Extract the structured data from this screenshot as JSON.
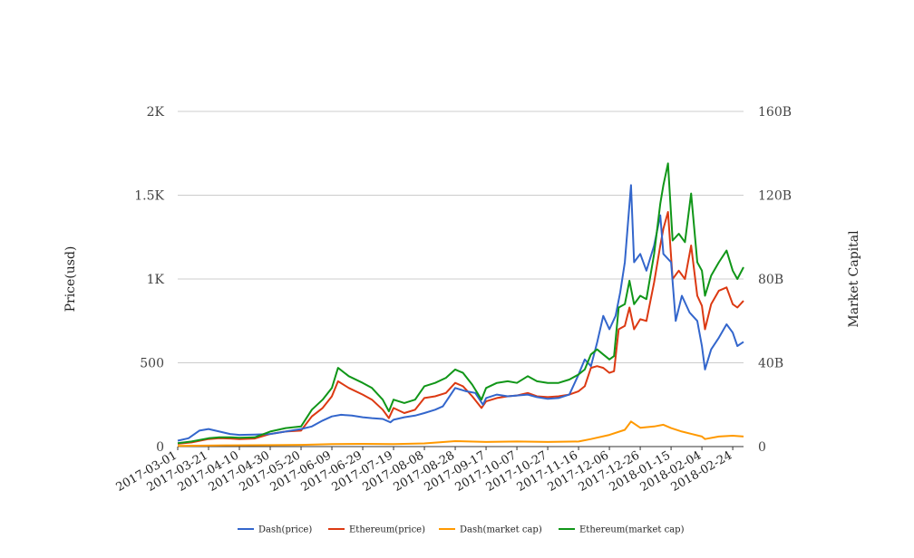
{
  "chart_data": {
    "type": "line",
    "title": "",
    "y_left_label": "Price(usd)",
    "y_right_label": "Market Capital",
    "y_left_ticks": [
      "0",
      "500",
      "1K",
      "1.5K",
      "2K"
    ],
    "y_right_ticks": [
      "0",
      "40B",
      "80B",
      "120B",
      "160B"
    ],
    "ylim_left": [
      0,
      2000
    ],
    "ylim_right": [
      0,
      160000000000
    ],
    "x_ticks": [
      "2017-03-01",
      "2017-03-21",
      "2017-04-10",
      "2017-04-30",
      "2017-05-20",
      "2017-06-09",
      "2017-06-29",
      "2017-07-19",
      "2017-08-08",
      "2017-08-28",
      "2017-09-17",
      "2017-10-07",
      "2017-10-27",
      "2017-11-16",
      "2017-12-06",
      "2017-12-26",
      "2018-01-15",
      "2018-02-04",
      "2018-02-24"
    ],
    "xlim": [
      "2017-03-01",
      "2018-03-03"
    ],
    "grid": true,
    "legend_position": "bottom",
    "series": [
      {
        "name": "Dash(price)",
        "color": "#3366cc",
        "axis": "left",
        "points": [
          [
            "2017-03-01",
            35
          ],
          [
            "2017-03-08",
            50
          ],
          [
            "2017-03-15",
            95
          ],
          [
            "2017-03-21",
            105
          ],
          [
            "2017-03-28",
            90
          ],
          [
            "2017-04-04",
            75
          ],
          [
            "2017-04-10",
            70
          ],
          [
            "2017-04-20",
            72
          ],
          [
            "2017-04-30",
            75
          ],
          [
            "2017-05-10",
            90
          ],
          [
            "2017-05-20",
            105
          ],
          [
            "2017-05-27",
            120
          ],
          [
            "2017-06-03",
            155
          ],
          [
            "2017-06-09",
            180
          ],
          [
            "2017-06-15",
            190
          ],
          [
            "2017-06-22",
            185
          ],
          [
            "2017-06-29",
            175
          ],
          [
            "2017-07-05",
            170
          ],
          [
            "2017-07-12",
            165
          ],
          [
            "2017-07-17",
            145
          ],
          [
            "2017-07-19",
            160
          ],
          [
            "2017-07-26",
            175
          ],
          [
            "2017-08-02",
            185
          ],
          [
            "2017-08-08",
            200
          ],
          [
            "2017-08-15",
            220
          ],
          [
            "2017-08-20",
            240
          ],
          [
            "2017-08-28",
            350
          ],
          [
            "2017-09-04",
            330
          ],
          [
            "2017-09-10",
            320
          ],
          [
            "2017-09-15",
            250
          ],
          [
            "2017-09-17",
            290
          ],
          [
            "2017-09-24",
            310
          ],
          [
            "2017-10-01",
            300
          ],
          [
            "2017-10-07",
            305
          ],
          [
            "2017-10-14",
            310
          ],
          [
            "2017-10-20",
            295
          ],
          [
            "2017-10-27",
            285
          ],
          [
            "2017-11-03",
            290
          ],
          [
            "2017-11-10",
            310
          ],
          [
            "2017-11-16",
            430
          ],
          [
            "2017-11-20",
            520
          ],
          [
            "2017-11-24",
            480
          ],
          [
            "2017-11-28",
            620
          ],
          [
            "2017-12-02",
            780
          ],
          [
            "2017-12-06",
            700
          ],
          [
            "2017-12-10",
            780
          ],
          [
            "2017-12-13",
            920
          ],
          [
            "2017-12-16",
            1100
          ],
          [
            "2017-12-20",
            1560
          ],
          [
            "2017-12-22",
            1100
          ],
          [
            "2017-12-26",
            1150
          ],
          [
            "2017-12-30",
            1050
          ],
          [
            "2018-01-04",
            1200
          ],
          [
            "2018-01-08",
            1380
          ],
          [
            "2018-01-10",
            1150
          ],
          [
            "2018-01-15",
            1100
          ],
          [
            "2018-01-18",
            750
          ],
          [
            "2018-01-22",
            900
          ],
          [
            "2018-01-27",
            800
          ],
          [
            "2018-02-01",
            750
          ],
          [
            "2018-02-04",
            600
          ],
          [
            "2018-02-06",
            460
          ],
          [
            "2018-02-10",
            580
          ],
          [
            "2018-02-15",
            650
          ],
          [
            "2018-02-20",
            730
          ],
          [
            "2018-02-24",
            680
          ],
          [
            "2018-02-27",
            600
          ],
          [
            "2018-03-03",
            625
          ]
        ]
      },
      {
        "name": "Ethereum(price)",
        "color": "#dc3912",
        "axis": "left",
        "points": [
          [
            "2017-03-01",
            17
          ],
          [
            "2017-03-10",
            25
          ],
          [
            "2017-03-21",
            45
          ],
          [
            "2017-03-28",
            50
          ],
          [
            "2017-04-04",
            48
          ],
          [
            "2017-04-10",
            45
          ],
          [
            "2017-04-20",
            48
          ],
          [
            "2017-04-30",
            75
          ],
          [
            "2017-05-10",
            90
          ],
          [
            "2017-05-20",
            95
          ],
          [
            "2017-05-27",
            180
          ],
          [
            "2017-06-03",
            230
          ],
          [
            "2017-06-09",
            300
          ],
          [
            "2017-06-13",
            390
          ],
          [
            "2017-06-20",
            350
          ],
          [
            "2017-06-29",
            310
          ],
          [
            "2017-07-05",
            280
          ],
          [
            "2017-07-12",
            220
          ],
          [
            "2017-07-16",
            170
          ],
          [
            "2017-07-19",
            230
          ],
          [
            "2017-07-26",
            200
          ],
          [
            "2017-08-02",
            220
          ],
          [
            "2017-08-08",
            290
          ],
          [
            "2017-08-15",
            300
          ],
          [
            "2017-08-22",
            320
          ],
          [
            "2017-08-28",
            380
          ],
          [
            "2017-09-02",
            360
          ],
          [
            "2017-09-08",
            300
          ],
          [
            "2017-09-14",
            230
          ],
          [
            "2017-09-17",
            270
          ],
          [
            "2017-09-24",
            290
          ],
          [
            "2017-10-01",
            300
          ],
          [
            "2017-10-07",
            305
          ],
          [
            "2017-10-14",
            320
          ],
          [
            "2017-10-20",
            300
          ],
          [
            "2017-10-27",
            295
          ],
          [
            "2017-11-03",
            300
          ],
          [
            "2017-11-10",
            310
          ],
          [
            "2017-11-16",
            330
          ],
          [
            "2017-11-20",
            360
          ],
          [
            "2017-11-24",
            470
          ],
          [
            "2017-11-28",
            480
          ],
          [
            "2017-12-02",
            470
          ],
          [
            "2017-12-06",
            440
          ],
          [
            "2017-12-09",
            450
          ],
          [
            "2017-12-12",
            700
          ],
          [
            "2017-12-16",
            720
          ],
          [
            "2017-12-19",
            830
          ],
          [
            "2017-12-22",
            700
          ],
          [
            "2017-12-26",
            760
          ],
          [
            "2017-12-30",
            750
          ],
          [
            "2018-01-04",
            980
          ],
          [
            "2018-01-08",
            1200
          ],
          [
            "2018-01-10",
            1300
          ],
          [
            "2018-01-13",
            1400
          ],
          [
            "2018-01-16",
            1000
          ],
          [
            "2018-01-20",
            1050
          ],
          [
            "2018-01-24",
            1000
          ],
          [
            "2018-01-28",
            1200
          ],
          [
            "2018-02-01",
            900
          ],
          [
            "2018-02-04",
            840
          ],
          [
            "2018-02-06",
            700
          ],
          [
            "2018-02-10",
            850
          ],
          [
            "2018-02-15",
            930
          ],
          [
            "2018-02-20",
            950
          ],
          [
            "2018-02-24",
            850
          ],
          [
            "2018-02-27",
            830
          ],
          [
            "2018-03-03",
            870
          ]
        ]
      },
      {
        "name": "Dash(market cap)",
        "color": "#ff9900",
        "axis": "right",
        "points": [
          [
            "2017-03-01",
            300000000
          ],
          [
            "2017-04-01",
            600000000
          ],
          [
            "2017-05-01",
            700000000
          ],
          [
            "2017-05-20",
            800000000
          ],
          [
            "2017-06-09",
            1200000000
          ],
          [
            "2017-06-29",
            1300000000
          ],
          [
            "2017-07-19",
            1200000000
          ],
          [
            "2017-08-08",
            1500000000
          ],
          [
            "2017-08-28",
            2600000000
          ],
          [
            "2017-09-17",
            2200000000
          ],
          [
            "2017-10-07",
            2400000000
          ],
          [
            "2017-10-27",
            2200000000
          ],
          [
            "2017-11-16",
            2400000000
          ],
          [
            "2017-11-24",
            3600000000
          ],
          [
            "2017-12-06",
            5600000000
          ],
          [
            "2017-12-16",
            8000000000
          ],
          [
            "2017-12-20",
            12000000000
          ],
          [
            "2017-12-26",
            9000000000
          ],
          [
            "2018-01-04",
            9600000000
          ],
          [
            "2018-01-10",
            10400000000
          ],
          [
            "2018-01-15",
            8800000000
          ],
          [
            "2018-01-22",
            7200000000
          ],
          [
            "2018-02-04",
            4800000000
          ],
          [
            "2018-02-06",
            3600000000
          ],
          [
            "2018-02-15",
            4800000000
          ],
          [
            "2018-02-24",
            5200000000
          ],
          [
            "2018-03-03",
            4800000000
          ]
        ]
      },
      {
        "name": "Ethereum(market cap)",
        "color": "#109618",
        "axis": "right",
        "points": [
          [
            "2017-03-01",
            1600000000
          ],
          [
            "2017-03-10",
            2400000000
          ],
          [
            "2017-03-21",
            4000000000
          ],
          [
            "2017-03-28",
            4400000000
          ],
          [
            "2017-04-04",
            4400000000
          ],
          [
            "2017-04-10",
            4200000000
          ],
          [
            "2017-04-20",
            4400000000
          ],
          [
            "2017-04-30",
            7200000000
          ],
          [
            "2017-05-10",
            8800000000
          ],
          [
            "2017-05-20",
            9600000000
          ],
          [
            "2017-05-27",
            17600000000
          ],
          [
            "2017-06-03",
            22400000000
          ],
          [
            "2017-06-09",
            28000000000
          ],
          [
            "2017-06-13",
            37600000000
          ],
          [
            "2017-06-20",
            33600000000
          ],
          [
            "2017-06-29",
            30400000000
          ],
          [
            "2017-07-05",
            28000000000
          ],
          [
            "2017-07-12",
            22400000000
          ],
          [
            "2017-07-16",
            16800000000
          ],
          [
            "2017-07-19",
            22400000000
          ],
          [
            "2017-07-26",
            20800000000
          ],
          [
            "2017-08-02",
            22400000000
          ],
          [
            "2017-08-08",
            28800000000
          ],
          [
            "2017-08-15",
            30400000000
          ],
          [
            "2017-08-22",
            32800000000
          ],
          [
            "2017-08-28",
            36800000000
          ],
          [
            "2017-09-02",
            35200000000
          ],
          [
            "2017-09-08",
            29600000000
          ],
          [
            "2017-09-14",
            22400000000
          ],
          [
            "2017-09-17",
            28000000000
          ],
          [
            "2017-09-24",
            30400000000
          ],
          [
            "2017-10-01",
            31200000000
          ],
          [
            "2017-10-07",
            30400000000
          ],
          [
            "2017-10-14",
            33600000000
          ],
          [
            "2017-10-20",
            31200000000
          ],
          [
            "2017-10-27",
            30400000000
          ],
          [
            "2017-11-03",
            30400000000
          ],
          [
            "2017-11-10",
            32000000000
          ],
          [
            "2017-11-16",
            34400000000
          ],
          [
            "2017-11-20",
            36800000000
          ],
          [
            "2017-11-24",
            44000000000
          ],
          [
            "2017-11-28",
            46400000000
          ],
          [
            "2017-12-02",
            44000000000
          ],
          [
            "2017-12-06",
            41600000000
          ],
          [
            "2017-12-09",
            43200000000
          ],
          [
            "2017-12-12",
            66400000000
          ],
          [
            "2017-12-16",
            68000000000
          ],
          [
            "2017-12-19",
            79200000000
          ],
          [
            "2017-12-22",
            68000000000
          ],
          [
            "2017-12-26",
            72000000000
          ],
          [
            "2017-12-30",
            70400000000
          ],
          [
            "2018-01-04",
            92000000000
          ],
          [
            "2018-01-08",
            116000000000
          ],
          [
            "2018-01-10",
            124800000000
          ],
          [
            "2018-01-13",
            135200000000
          ],
          [
            "2018-01-16",
            98400000000
          ],
          [
            "2018-01-20",
            101600000000
          ],
          [
            "2018-01-24",
            97600000000
          ],
          [
            "2018-01-28",
            120800000000
          ],
          [
            "2018-02-01",
            88000000000
          ],
          [
            "2018-02-04",
            84000000000
          ],
          [
            "2018-02-06",
            72000000000
          ],
          [
            "2018-02-10",
            81600000000
          ],
          [
            "2018-02-15",
            88000000000
          ],
          [
            "2018-02-20",
            93600000000
          ],
          [
            "2018-02-24",
            84000000000
          ],
          [
            "2018-02-27",
            80000000000
          ],
          [
            "2018-03-03",
            85600000000
          ]
        ]
      }
    ]
  }
}
